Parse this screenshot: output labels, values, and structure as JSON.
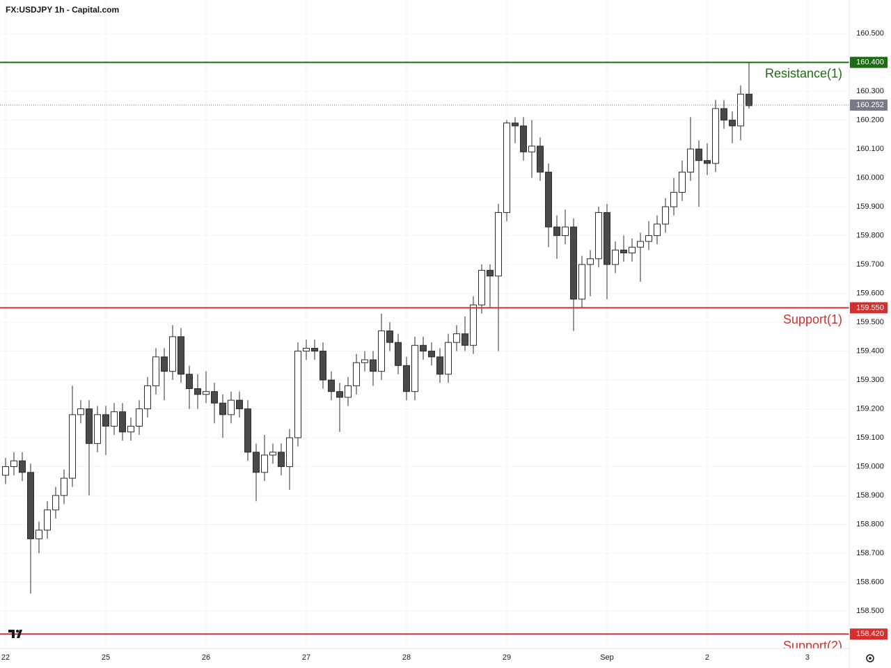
{
  "chart_data": {
    "type": "candlestick",
    "title": "FX:USDJPY 1h - Capital.com",
    "x": [
      0,
      2,
      4,
      6,
      8,
      10,
      12,
      14,
      16,
      18,
      20,
      22,
      24,
      26,
      28,
      30,
      32,
      34,
      36,
      38,
      40,
      42,
      44,
      46,
      48,
      50,
      52,
      54,
      56,
      58,
      60,
      62,
      64,
      66,
      68,
      70,
      72,
      74,
      76,
      78,
      80,
      82,
      84,
      86,
      88,
      90,
      92,
      94,
      96,
      98,
      100,
      102,
      104,
      106,
      108,
      110,
      112,
      114,
      116,
      118,
      120,
      122,
      124,
      126,
      128,
      130,
      132,
      134,
      136,
      138,
      140,
      142,
      144,
      146,
      148,
      150,
      152,
      154,
      156,
      158,
      160,
      162,
      164,
      166,
      168,
      170,
      172,
      174,
      176,
      178
    ],
    "open": [
      158.97,
      159.0,
      159.02,
      158.98,
      158.75,
      158.78,
      158.85,
      158.9,
      158.96,
      159.18,
      159.2,
      159.08,
      159.18,
      159.14,
      159.19,
      159.12,
      159.14,
      159.2,
      159.28,
      159.38,
      159.33,
      159.45,
      159.32,
      159.27,
      159.25,
      159.26,
      159.22,
      159.18,
      159.23,
      159.2,
      159.05,
      158.98,
      159.04,
      159.05,
      159.0,
      159.1,
      159.4,
      159.41,
      159.4,
      159.3,
      159.26,
      159.24,
      159.28,
      159.36,
      159.37,
      159.33,
      159.47,
      159.43,
      159.35,
      159.26,
      159.42,
      159.4,
      159.38,
      159.32,
      159.43,
      159.46,
      159.42,
      159.56,
      159.68,
      159.66,
      159.88,
      160.19,
      160.18,
      160.09,
      160.11,
      160.02,
      159.83,
      159.8,
      159.83,
      159.58,
      159.7,
      159.72,
      159.88,
      159.7,
      159.75,
      159.74,
      159.76,
      159.78,
      159.8,
      159.84,
      159.9,
      159.95,
      160.02,
      160.1,
      160.06,
      160.05,
      160.24,
      160.2,
      160.18,
      160.29
    ],
    "high": [
      159.03,
      159.05,
      159.05,
      159.01,
      158.81,
      158.88,
      158.93,
      158.99,
      159.28,
      159.23,
      159.23,
      159.21,
      159.21,
      159.22,
      159.22,
      159.17,
      159.23,
      159.31,
      159.41,
      159.41,
      159.49,
      159.48,
      159.35,
      159.32,
      159.33,
      159.29,
      159.25,
      159.26,
      159.26,
      159.23,
      159.08,
      159.11,
      159.08,
      159.08,
      159.13,
      159.43,
      159.44,
      159.44,
      159.43,
      159.33,
      159.29,
      159.31,
      159.39,
      159.4,
      159.4,
      159.53,
      159.5,
      159.46,
      159.38,
      159.45,
      159.45,
      159.43,
      159.41,
      159.46,
      159.49,
      159.52,
      159.59,
      159.7,
      159.7,
      159.91,
      160.2,
      160.21,
      160.21,
      160.2,
      160.14,
      160.05,
      159.87,
      159.89,
      159.86,
      159.73,
      159.75,
      159.9,
      159.91,
      159.78,
      159.8,
      159.79,
      159.81,
      159.85,
      159.87,
      159.93,
      160.0,
      160.06,
      160.21,
      160.13,
      160.12,
      160.27,
      160.27,
      160.23,
      160.32,
      160.4
    ],
    "low": [
      158.94,
      158.97,
      158.95,
      158.56,
      158.7,
      158.75,
      158.82,
      158.87,
      158.93,
      159.15,
      158.9,
      159.05,
      159.04,
      159.11,
      159.09,
      159.09,
      159.11,
      159.17,
      159.25,
      159.23,
      159.3,
      159.29,
      159.2,
      159.2,
      159.22,
      159.15,
      159.1,
      159.15,
      159.17,
      159.02,
      158.88,
      158.95,
      159.01,
      158.97,
      158.92,
      159.07,
      159.37,
      159.37,
      159.27,
      159.23,
      159.12,
      159.21,
      159.25,
      159.33,
      159.28,
      159.3,
      159.4,
      159.32,
      159.23,
      159.23,
      159.37,
      159.35,
      159.29,
      159.29,
      159.4,
      159.4,
      159.39,
      159.53,
      159.55,
      159.4,
      159.85,
      160.12,
      160.06,
      160.0,
      159.99,
      159.76,
      159.72,
      159.77,
      159.47,
      159.55,
      159.59,
      159.69,
      159.58,
      159.67,
      159.71,
      159.71,
      159.64,
      159.75,
      159.77,
      159.81,
      159.87,
      159.92,
      159.99,
      159.9,
      160.01,
      160.02,
      160.17,
      160.12,
      160.13,
      160.24
    ],
    "close": [
      159.0,
      159.02,
      158.98,
      158.75,
      158.78,
      158.85,
      158.9,
      158.96,
      159.18,
      159.2,
      159.08,
      159.18,
      159.14,
      159.19,
      159.12,
      159.14,
      159.2,
      159.28,
      159.38,
      159.33,
      159.45,
      159.32,
      159.27,
      159.25,
      159.26,
      159.22,
      159.18,
      159.23,
      159.2,
      159.05,
      158.98,
      159.04,
      159.05,
      159.0,
      159.1,
      159.4,
      159.41,
      159.4,
      159.3,
      159.26,
      159.24,
      159.28,
      159.36,
      159.37,
      159.33,
      159.47,
      159.43,
      159.35,
      159.26,
      159.42,
      159.4,
      159.38,
      159.32,
      159.43,
      159.46,
      159.42,
      159.56,
      159.68,
      159.66,
      159.88,
      160.19,
      160.18,
      160.09,
      160.11,
      160.02,
      159.83,
      159.8,
      159.83,
      159.58,
      159.7,
      159.72,
      159.88,
      159.7,
      159.75,
      159.74,
      159.76,
      159.78,
      159.8,
      159.84,
      159.9,
      159.95,
      160.02,
      160.1,
      160.06,
      160.05,
      160.24,
      160.2,
      160.18,
      160.29,
      160.25
    ],
    "up_color": "#ffffff",
    "down_color": "#4a4a4a",
    "border_color": "#2a2a2a",
    "xlim": [
      -1.333,
      201.667
    ],
    "xticks": [
      {
        "value": 0,
        "label": "22"
      },
      {
        "value": 24,
        "label": "25"
      },
      {
        "value": 48,
        "label": "26"
      },
      {
        "value": 72,
        "label": "27"
      },
      {
        "value": 96,
        "label": "28"
      },
      {
        "value": 120,
        "label": "29"
      },
      {
        "value": 144,
        "label": "Sep"
      },
      {
        "value": 168,
        "label": "2"
      },
      {
        "value": 192,
        "label": "3"
      }
    ],
    "ylim": [
      158.37,
      160.616
    ],
    "yticks": [
      {
        "value": 158.5,
        "label": "158.500"
      },
      {
        "value": 158.6,
        "label": "158.600"
      },
      {
        "value": 158.7,
        "label": "158.700"
      },
      {
        "value": 158.8,
        "label": "158.800"
      },
      {
        "value": 158.9,
        "label": "158.900"
      },
      {
        "value": 159.0,
        "label": "159.000"
      },
      {
        "value": 159.1,
        "label": "159.100"
      },
      {
        "value": 159.2,
        "label": "159.200"
      },
      {
        "value": 159.3,
        "label": "159.300"
      },
      {
        "value": 159.4,
        "label": "159.400"
      },
      {
        "value": 159.5,
        "label": "159.500"
      },
      {
        "value": 159.6,
        "label": "159.600"
      },
      {
        "value": 159.7,
        "label": "159.700"
      },
      {
        "value": 159.8,
        "label": "159.800"
      },
      {
        "value": 159.9,
        "label": "159.900"
      },
      {
        "value": 160.0,
        "label": "160.000"
      },
      {
        "value": 160.1,
        "label": "160.100"
      },
      {
        "value": 160.2,
        "label": "160.200"
      },
      {
        "value": 160.3,
        "label": "160.300"
      },
      {
        "value": 160.4,
        "label": "160.400"
      },
      {
        "value": 160.5,
        "label": "160.500"
      }
    ],
    "grid": true,
    "levels": [
      {
        "name": "Resistance(1)",
        "value": 160.4,
        "value_label": "160.400",
        "color": "#1e6b14"
      },
      {
        "name": "Support(1)",
        "value": 159.55,
        "value_label": "159.550",
        "color": "#d32f2f"
      },
      {
        "name": "Support(2)",
        "value": 158.42,
        "value_label": "158.420",
        "color": "#d32f2f"
      }
    ],
    "last_price": 160.252,
    "last_price_color": "#787b86"
  }
}
